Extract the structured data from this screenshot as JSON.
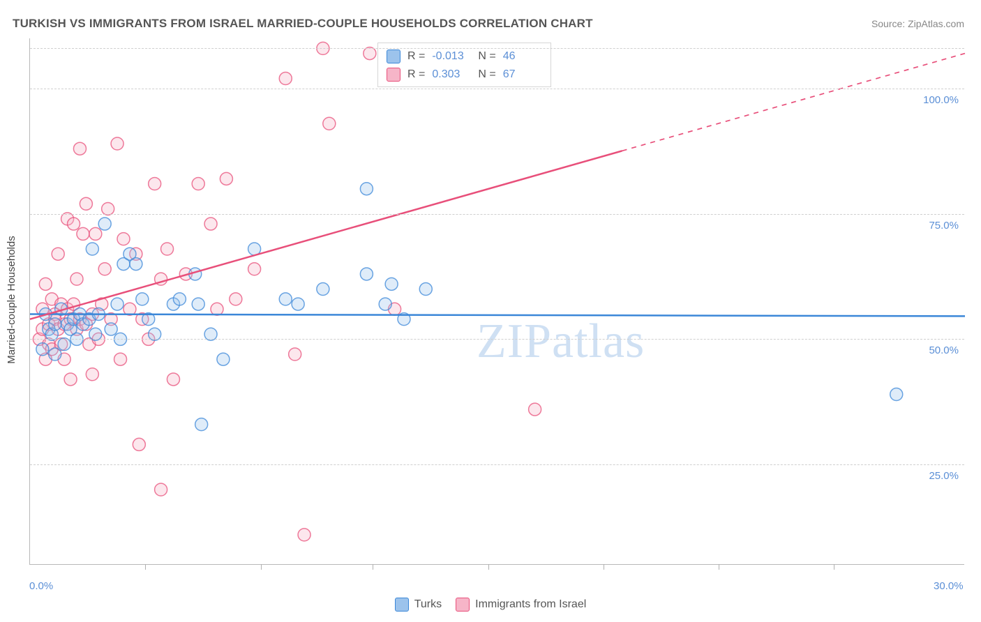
{
  "title": "TURKISH VS IMMIGRANTS FROM ISRAEL MARRIED-COUPLE HOUSEHOLDS CORRELATION CHART",
  "source": "Source: ZipAtlas.com",
  "watermark": "ZIPatlas",
  "y_axis_label": "Married-couple Households",
  "chart": {
    "type": "scatter",
    "background_color": "#ffffff",
    "grid_color": "#cfcfcf",
    "axis_color": "#b8b8b8",
    "tick_label_color": "#5b8fd6",
    "xlim": [
      0,
      30
    ],
    "ylim": [
      5,
      110
    ],
    "x_ticks_minor": [
      3.7,
      7.4,
      11.0,
      14.7,
      18.4,
      22.1,
      25.8
    ],
    "x_tick_labels": [
      {
        "x": 0,
        "label": "0.0%"
      },
      {
        "x": 30,
        "label": "30.0%"
      }
    ],
    "y_gridlines": [
      25,
      50,
      75,
      100,
      108
    ],
    "y_tick_labels": [
      {
        "y": 25,
        "label": "25.0%"
      },
      {
        "y": 50,
        "label": "50.0%"
      },
      {
        "y": 75,
        "label": "75.0%"
      },
      {
        "y": 100,
        "label": "100.0%"
      }
    ],
    "marker_radius": 9,
    "marker_fill_opacity": 0.32,
    "marker_stroke_width": 1.5,
    "line_width": 2.5,
    "series": [
      {
        "name": "Turks",
        "color_stroke": "#3b87d8",
        "color_fill": "#9cc3ec",
        "R": "-0.013",
        "N": "46",
        "trend": {
          "x0": 0,
          "y0": 55.0,
          "x1": 30,
          "y1": 54.6,
          "dash_from_x": 30
        },
        "points": [
          [
            0.4,
            48
          ],
          [
            0.5,
            55
          ],
          [
            0.6,
            52
          ],
          [
            0.7,
            51
          ],
          [
            0.8,
            53
          ],
          [
            0.8,
            47
          ],
          [
            1.0,
            56
          ],
          [
            1.1,
            49
          ],
          [
            1.2,
            53
          ],
          [
            1.3,
            52
          ],
          [
            1.4,
            54
          ],
          [
            1.5,
            50
          ],
          [
            1.6,
            55
          ],
          [
            1.7,
            53
          ],
          [
            1.9,
            54
          ],
          [
            2.0,
            68
          ],
          [
            2.1,
            51
          ],
          [
            2.2,
            55
          ],
          [
            2.4,
            73
          ],
          [
            2.6,
            52
          ],
          [
            2.8,
            57
          ],
          [
            2.9,
            50
          ],
          [
            3.0,
            65
          ],
          [
            3.2,
            67
          ],
          [
            3.4,
            65
          ],
          [
            3.6,
            58
          ],
          [
            3.8,
            54
          ],
          [
            4.0,
            51
          ],
          [
            4.6,
            57
          ],
          [
            4.8,
            58
          ],
          [
            5.3,
            63
          ],
          [
            5.4,
            57
          ],
          [
            5.5,
            33
          ],
          [
            5.8,
            51
          ],
          [
            6.2,
            46
          ],
          [
            7.2,
            68
          ],
          [
            8.2,
            58
          ],
          [
            8.6,
            57
          ],
          [
            9.4,
            60
          ],
          [
            10.8,
            63
          ],
          [
            10.8,
            80
          ],
          [
            11.4,
            57
          ],
          [
            11.6,
            61
          ],
          [
            12.0,
            54
          ],
          [
            12.7,
            60
          ],
          [
            27.8,
            39
          ]
        ]
      },
      {
        "name": "Immigrants from Israel",
        "color_stroke": "#e84f7a",
        "color_fill": "#f6b5c8",
        "R": "0.303",
        "N": "67",
        "trend": {
          "x0": 0,
          "y0": 54.0,
          "x1": 30,
          "y1": 107.0,
          "dash_from_x": 19
        },
        "points": [
          [
            0.3,
            50
          ],
          [
            0.4,
            52
          ],
          [
            0.4,
            56
          ],
          [
            0.5,
            46
          ],
          [
            0.5,
            61
          ],
          [
            0.6,
            49
          ],
          [
            0.6,
            53
          ],
          [
            0.7,
            58
          ],
          [
            0.7,
            48
          ],
          [
            0.8,
            55
          ],
          [
            0.8,
            54
          ],
          [
            0.9,
            52
          ],
          [
            0.9,
            67
          ],
          [
            1.0,
            57
          ],
          [
            1.0,
            49
          ],
          [
            1.1,
            53
          ],
          [
            1.1,
            46
          ],
          [
            1.2,
            56
          ],
          [
            1.2,
            74
          ],
          [
            1.3,
            54
          ],
          [
            1.3,
            42
          ],
          [
            1.4,
            57
          ],
          [
            1.4,
            73
          ],
          [
            1.5,
            52
          ],
          [
            1.5,
            62
          ],
          [
            1.6,
            54
          ],
          [
            1.6,
            88
          ],
          [
            1.7,
            71
          ],
          [
            1.8,
            77
          ],
          [
            1.8,
            53
          ],
          [
            1.9,
            49
          ],
          [
            2.0,
            55
          ],
          [
            2.0,
            43
          ],
          [
            2.1,
            71
          ],
          [
            2.2,
            50
          ],
          [
            2.3,
            57
          ],
          [
            2.4,
            64
          ],
          [
            2.5,
            76
          ],
          [
            2.6,
            54
          ],
          [
            2.8,
            89
          ],
          [
            2.9,
            46
          ],
          [
            3.0,
            70
          ],
          [
            3.2,
            56
          ],
          [
            3.4,
            67
          ],
          [
            3.5,
            29
          ],
          [
            3.6,
            54
          ],
          [
            3.8,
            50
          ],
          [
            4.0,
            81
          ],
          [
            4.2,
            62
          ],
          [
            4.2,
            20
          ],
          [
            4.4,
            68
          ],
          [
            4.6,
            42
          ],
          [
            5.0,
            63
          ],
          [
            5.4,
            81
          ],
          [
            5.8,
            73
          ],
          [
            6.0,
            56
          ],
          [
            6.3,
            82
          ],
          [
            6.6,
            58
          ],
          [
            7.2,
            64
          ],
          [
            8.2,
            102
          ],
          [
            8.5,
            47
          ],
          [
            8.8,
            11
          ],
          [
            9.4,
            108
          ],
          [
            9.6,
            93
          ],
          [
            10.9,
            107
          ],
          [
            11.7,
            56
          ],
          [
            16.2,
            36
          ]
        ]
      }
    ]
  },
  "legend_top": {
    "r_label": "R =",
    "n_label": "N ="
  },
  "legend_bottom": {
    "items": [
      "Turks",
      "Immigrants from Israel"
    ]
  }
}
